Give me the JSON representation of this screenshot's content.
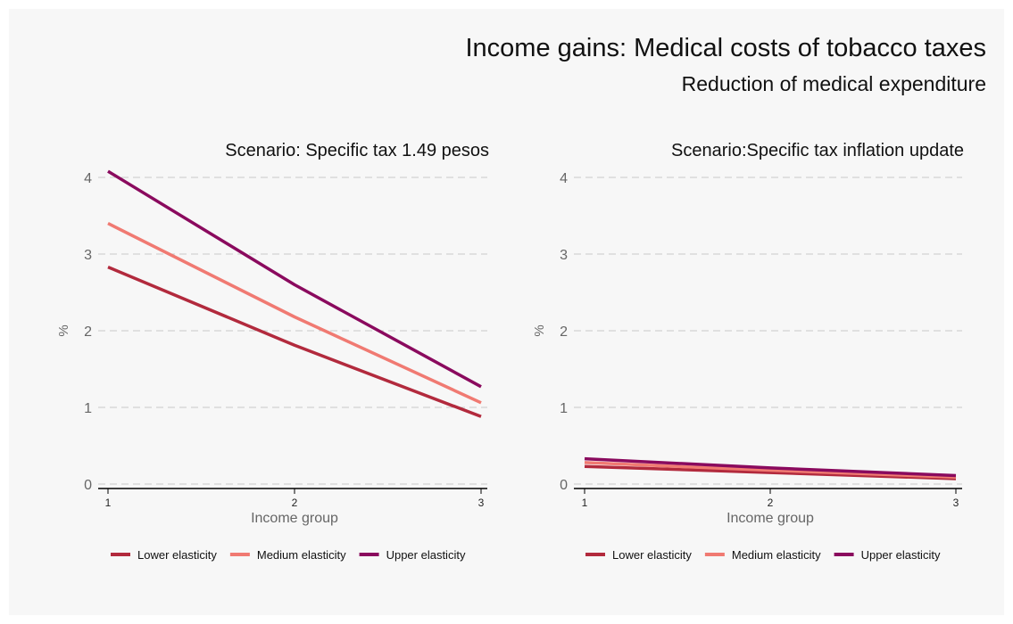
{
  "title": "Income gains: Medical costs of tobacco taxes",
  "subtitle": "Reduction of medical expenditure",
  "colors": {
    "lower": "#b22a3d",
    "medium": "#f07a72",
    "upper": "#8a0a5e",
    "grid": "#c8c8c8",
    "tick": "#666666",
    "axis": "#000000"
  },
  "chart_data": [
    {
      "type": "line",
      "title": "Scenario: Specific tax 1.49 pesos",
      "xlabel": "Income group",
      "ylabel": "%",
      "x": [
        1,
        2,
        3
      ],
      "ylim": [
        0,
        4
      ],
      "yticks": [
        0,
        1,
        2,
        3,
        4
      ],
      "grid": true,
      "legend": "bottom",
      "series": [
        {
          "name": "Lower elasticity",
          "key": "lower",
          "values": [
            2.83,
            1.81,
            0.88
          ]
        },
        {
          "name": "Medium elasticity",
          "key": "medium",
          "values": [
            3.4,
            2.18,
            1.06
          ]
        },
        {
          "name": "Upper elasticity",
          "key": "upper",
          "values": [
            4.08,
            2.6,
            1.27
          ]
        }
      ]
    },
    {
      "type": "line",
      "title": "Scenario:Specific tax inflation update",
      "xlabel": "Income group",
      "ylabel": "%",
      "x": [
        1,
        2,
        3
      ],
      "ylim": [
        0,
        4
      ],
      "yticks": [
        0,
        1,
        2,
        3,
        4
      ],
      "grid": true,
      "legend": "bottom",
      "series": [
        {
          "name": "Lower elasticity",
          "key": "lower",
          "values": [
            0.23,
            0.15,
            0.07
          ]
        },
        {
          "name": "Medium elasticity",
          "key": "medium",
          "values": [
            0.28,
            0.18,
            0.09
          ]
        },
        {
          "name": "Upper elasticity",
          "key": "upper",
          "values": [
            0.33,
            0.21,
            0.11
          ]
        }
      ]
    }
  ]
}
